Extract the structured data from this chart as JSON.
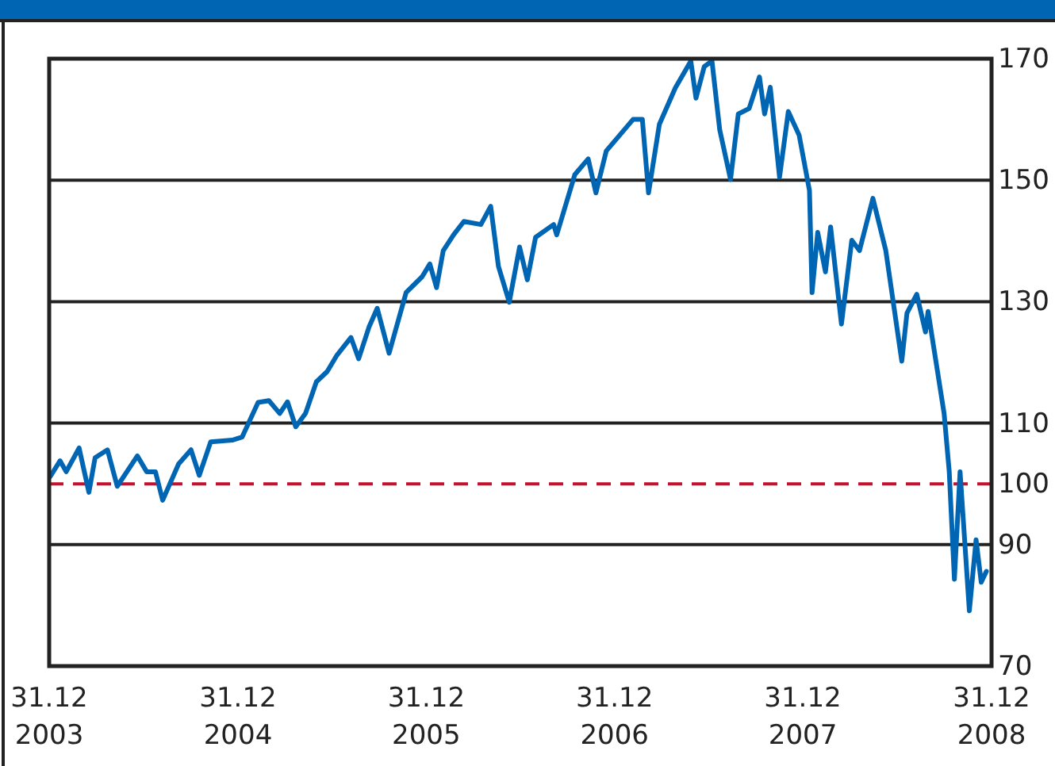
{
  "chart_data": {
    "type": "line",
    "x": [
      "2004-01-02",
      "2004-01-21",
      "2004-02-02",
      "2004-02-27",
      "2004-03-17",
      "2004-03-29",
      "2004-04-22",
      "2004-05-11",
      "2004-06-19",
      "2004-07-07",
      "2004-07-24",
      "2004-08-07",
      "2004-09-07",
      "2004-10-01",
      "2004-10-17",
      "2004-11-08",
      "2004-12-20",
      "2005-01-08",
      "2005-02-08",
      "2005-03-01",
      "2005-03-22",
      "2005-04-06",
      "2005-04-22",
      "2005-05-11",
      "2005-06-01",
      "2005-06-22",
      "2005-07-11",
      "2005-08-07",
      "2005-08-22",
      "2005-09-11",
      "2005-09-27",
      "2005-10-20",
      "2005-11-22",
      "2005-12-23",
      "2006-01-07",
      "2006-01-20",
      "2006-02-02",
      "2006-02-22",
      "2006-03-14",
      "2006-04-16",
      "2006-05-05",
      "2006-05-20",
      "2006-06-10",
      "2006-06-30",
      "2006-07-15",
      "2006-07-31",
      "2006-09-04",
      "2006-09-10",
      "2006-10-15",
      "2006-11-10",
      "2006-11-25",
      "2006-12-15",
      "2007-02-05",
      "2007-02-23",
      "2007-03-07",
      "2007-03-28",
      "2007-04-28",
      "2007-05-28",
      "2007-06-07",
      "2007-06-23",
      "2007-07-08",
      "2007-07-23",
      "2007-08-13",
      "2007-08-28",
      "2007-09-18",
      "2007-10-08",
      "2007-10-18",
      "2007-10-29",
      "2007-11-16",
      "2007-12-03",
      "2007-12-24",
      "2008-01-13",
      "2008-01-18",
      "2008-01-29",
      "2008-02-13",
      "2008-02-23",
      "2008-03-15",
      "2008-04-04",
      "2008-04-19",
      "2008-05-15",
      "2008-06-09",
      "2008-07-10",
      "2008-07-20",
      "2008-08-08",
      "2008-08-25",
      "2008-08-30",
      "2008-09-30",
      "2008-10-10",
      "2008-10-20",
      "2008-10-31",
      "2008-11-18",
      "2008-12-01",
      "2008-12-11",
      "2008-12-21"
    ],
    "series": [
      {
        "color": "#0066b3",
        "values": [
          101.2,
          103.8,
          102,
          105.9,
          98.6,
          104.3,
          105.6,
          99.6,
          104.6,
          102,
          102,
          97.3,
          103.3,
          105.6,
          101.4,
          106.9,
          107.2,
          107.7,
          113.4,
          113.7,
          111.6,
          113.5,
          109.4,
          111.6,
          116.8,
          118.5,
          121.2,
          124.1,
          120.6,
          125.8,
          128.9,
          121.5,
          131.5,
          134.1,
          136.2,
          132.3,
          138.4,
          141,
          143.2,
          142.7,
          145.7,
          135.8,
          129.9,
          139,
          133.6,
          140.6,
          142.7,
          141,
          150.9,
          153.5,
          147.9,
          154.8,
          160,
          160,
          147.9,
          159.2,
          165.2,
          169.6,
          163.5,
          168.7,
          169.6,
          158.3,
          150.1,
          160.9,
          161.8,
          167,
          160.9,
          165.3,
          150.5,
          161.3,
          157.4,
          148.3,
          131.5,
          141.4,
          134.9,
          142.3,
          126.3,
          140.1,
          138.4,
          147,
          138.4,
          120.2,
          128.1,
          131.2,
          125,
          128.4,
          111.6,
          102,
          84.3,
          102,
          79.1,
          90.8,
          83.8,
          85.6
        ]
      }
    ],
    "xlim": [
      "2003-12-31",
      "2008-12-31"
    ],
    "xticks": [
      {
        "value": "2003-12-31",
        "label": "31.12\n2003"
      },
      {
        "value": "2004-12-31",
        "label": "31.12\n2004"
      },
      {
        "value": "2005-12-31",
        "label": "31.12\n2005"
      },
      {
        "value": "2006-12-31",
        "label": "31.12\n2006"
      },
      {
        "value": "2007-12-31",
        "label": "31.12\n2007"
      },
      {
        "value": "2008-12-31",
        "label": "31.12\n2008"
      }
    ],
    "ylim": [
      70,
      170
    ],
    "yticks": [
      70,
      90,
      100,
      110,
      130,
      150,
      170
    ],
    "grid": "y",
    "ref_lines": [
      {
        "axis": "y",
        "value": 100,
        "color": "#c8102e",
        "line_style": "dashed"
      }
    ],
    "marker": "none",
    "line_style": "solid"
  }
}
